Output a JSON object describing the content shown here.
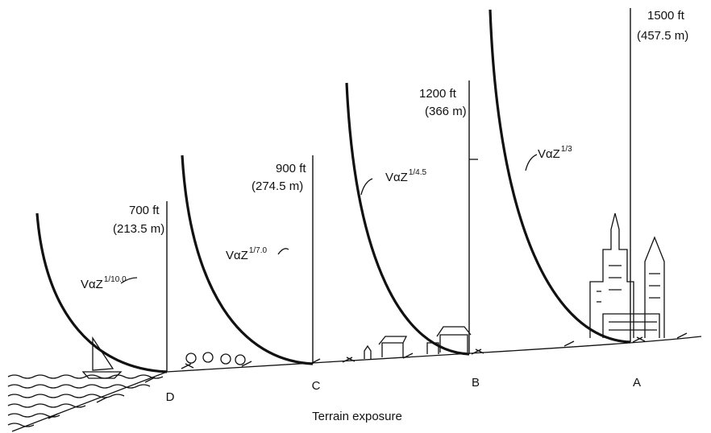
{
  "caption": "Terrain exposure",
  "profiles": [
    {
      "site": "D",
      "height_ft": "700 ft",
      "height_m": "(213.5 m)",
      "law": "VαZ",
      "exponent": "1/10.0"
    },
    {
      "site": "C",
      "height_ft": "900 ft",
      "height_m": "(274.5 m)",
      "law": "VαZ",
      "exponent": "1/7.0"
    },
    {
      "site": "B",
      "height_ft": "1200 ft",
      "height_m": "(366 m)",
      "law": "VαZ",
      "exponent": "1/4.5"
    },
    {
      "site": "A",
      "height_ft": "1500 ft",
      "height_m": "(457.5 m)",
      "law": "VαZ",
      "exponent": "1/3"
    }
  ]
}
